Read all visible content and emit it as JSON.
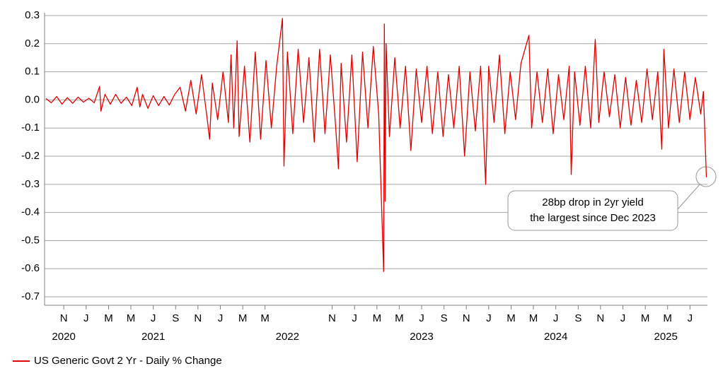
{
  "chart_data": {
    "type": "line",
    "series": [
      {
        "name": "US Generic Govt 2 Yr - Daily % Change",
        "color": "#e00000",
        "values": [
          0.005,
          -0.01,
          0.012,
          -0.015,
          0.008,
          -0.012,
          0.01,
          -0.008,
          0.006,
          -0.01,
          0.048,
          -0.04,
          0.02,
          -0.015,
          0.02,
          -0.012,
          0.01,
          -0.02,
          0.045,
          -0.025,
          0.02,
          -0.03,
          0.015,
          -0.02,
          0.012,
          -0.018,
          0.02,
          0.045,
          -0.04,
          0.07,
          -0.05,
          0.09,
          -0.06,
          -0.14,
          0.06,
          -0.07,
          0.1,
          -0.08,
          0.16,
          -0.1,
          0.21,
          -0.13,
          0.12,
          -0.15,
          0.17,
          -0.14,
          0.14,
          -0.1,
          0.12,
          0.29,
          -0.235,
          0.17,
          -0.12,
          0.18,
          -0.08,
          0.15,
          -0.15,
          0.18,
          -0.12,
          0.16,
          -0.1,
          -0.245,
          0.13,
          -0.15,
          0.16,
          -0.22,
          0.17,
          -0.1,
          0.19,
          -0.05,
          -0.61,
          0.27,
          -0.36,
          0.2,
          -0.13,
          0.15,
          -0.1,
          0.12,
          -0.18,
          0.11,
          -0.08,
          0.12,
          -0.12,
          0.1,
          -0.13,
          0.09,
          -0.1,
          0.12,
          -0.2,
          0.1,
          -0.11,
          0.12,
          -0.3,
          0.12,
          -0.08,
          0.16,
          -0.12,
          0.1,
          -0.07,
          0.13,
          0.23,
          -0.1,
          0.1,
          -0.08,
          0.11,
          -0.12,
          0.09,
          -0.07,
          0.12,
          -0.265,
          0.1,
          -0.09,
          0.12,
          -0.1,
          0.215,
          -0.08,
          0.1,
          -0.06,
          0.09,
          -0.1,
          0.08,
          -0.09,
          0.07,
          -0.08,
          0.11,
          -0.07,
          0.1,
          -0.175,
          0.18,
          -0.1,
          0.11,
          -0.08,
          0.1,
          -0.07,
          0.08,
          -0.05,
          0.03,
          -0.275
        ]
      }
    ],
    "x": [
      2020.7,
      2020.74,
      2020.78,
      2020.82,
      2020.86,
      2020.9,
      2020.94,
      2020.98,
      2021.02,
      2021.06,
      2021.1,
      2021.11,
      2021.14,
      2021.18,
      2021.22,
      2021.26,
      2021.3,
      2021.34,
      2021.38,
      2021.4,
      2021.42,
      2021.46,
      2021.5,
      2021.54,
      2021.58,
      2021.62,
      2021.66,
      2021.7,
      2021.74,
      2021.78,
      2021.82,
      2021.86,
      2021.9,
      2021.92,
      2021.94,
      2021.98,
      2022.02,
      2022.06,
      2022.08,
      2022.1,
      2022.125,
      2022.14,
      2022.18,
      2022.22,
      2022.26,
      2022.3,
      2022.34,
      2022.38,
      2022.42,
      2022.463,
      2022.474,
      2022.5,
      2022.54,
      2022.58,
      2022.62,
      2022.66,
      2022.7,
      2022.74,
      2022.78,
      2022.82,
      2022.86,
      2022.88,
      2022.9,
      2022.94,
      2022.98,
      2023.02,
      2023.06,
      2023.1,
      2023.14,
      2023.18,
      2023.217,
      2023.222,
      2023.228,
      2023.235,
      2023.26,
      2023.3,
      2023.34,
      2023.38,
      2023.42,
      2023.46,
      2023.5,
      2023.54,
      2023.58,
      2023.62,
      2023.66,
      2023.7,
      2023.74,
      2023.78,
      2023.82,
      2023.86,
      2023.9,
      2023.94,
      2023.977,
      2024.0,
      2024.04,
      2024.08,
      2024.12,
      2024.16,
      2024.2,
      2024.24,
      2024.3,
      2024.32,
      2024.36,
      2024.4,
      2024.44,
      2024.48,
      2024.52,
      2024.56,
      2024.6,
      2024.615,
      2024.64,
      2024.68,
      2024.72,
      2024.76,
      2024.794,
      2024.82,
      2024.86,
      2024.9,
      2024.94,
      2024.98,
      2025.02,
      2025.06,
      2025.1,
      2025.14,
      2025.18,
      2025.22,
      2025.26,
      2025.29,
      2025.305,
      2025.34,
      2025.38,
      2025.42,
      2025.46,
      2025.5,
      2025.54,
      2025.58,
      2025.6,
      2025.622
    ],
    "xlim": [
      2020.69,
      2025.63
    ],
    "ylim": [
      -0.73,
      0.3
    ],
    "yticks": [
      -0.7,
      -0.6,
      -0.5,
      -0.4,
      -0.3,
      -0.2,
      -0.1,
      {
        "value": 0,
        "label": "0.0"
      },
      0.1,
      0.2,
      0.3
    ],
    "xticks": [
      {
        "value": 2020.833,
        "label": "N"
      },
      {
        "value": 2021.0,
        "label": "J"
      },
      {
        "value": 2021.167,
        "label": "M"
      },
      {
        "value": 2021.333,
        "label": "M"
      },
      {
        "value": 2021.5,
        "label": "J"
      },
      {
        "value": 2021.667,
        "label": "S"
      },
      {
        "value": 2021.833,
        "label": "N"
      },
      {
        "value": 2022.0,
        "label": "J"
      },
      {
        "value": 2022.167,
        "label": "M"
      },
      {
        "value": 2022.333,
        "label": "M"
      },
      {
        "value": 2022.833,
        "label": "N"
      },
      {
        "value": 2023.0,
        "label": "J"
      },
      {
        "value": 2023.167,
        "label": "M"
      },
      {
        "value": 2023.333,
        "label": "M"
      },
      {
        "value": 2023.5,
        "label": "J"
      },
      {
        "value": 2023.667,
        "label": "S"
      },
      {
        "value": 2023.833,
        "label": "N"
      },
      {
        "value": 2024.0,
        "label": "J"
      },
      {
        "value": 2024.167,
        "label": "M"
      },
      {
        "value": 2024.333,
        "label": "M"
      },
      {
        "value": 2024.5,
        "label": "J"
      },
      {
        "value": 2024.667,
        "label": "S"
      },
      {
        "value": 2024.833,
        "label": "N"
      },
      {
        "value": 2025.0,
        "label": "J"
      },
      {
        "value": 2025.167,
        "label": "M"
      },
      {
        "value": 2025.333,
        "label": "M"
      },
      {
        "value": 2025.5,
        "label": "J"
      }
    ],
    "year_labels": [
      {
        "value": 2020.833,
        "label": "2020"
      },
      {
        "value": 2021.5,
        "label": "2021"
      },
      {
        "value": 2022.5,
        "label": "2022"
      },
      {
        "value": 2023.5,
        "label": "2023"
      },
      {
        "value": 2024.5,
        "label": "2024"
      },
      {
        "value": 2025.32,
        "label": "2025"
      }
    ],
    "grid": true,
    "annotation": [
      "28bp drop in 2yr yield",
      "the largest since Dec 2023"
    ]
  }
}
